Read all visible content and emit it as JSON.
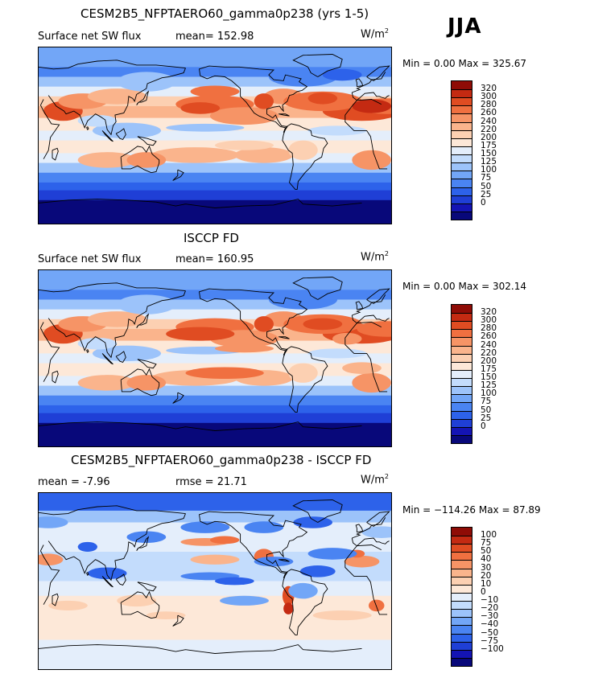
{
  "season_label": "JJA",
  "units": "W/m",
  "units_exp": "2",
  "colors": {
    "abs": [
      "#08087a",
      "#1414b4",
      "#1f3fd6",
      "#2d62ea",
      "#4a84f2",
      "#72a6f7",
      "#9cc3fa",
      "#c3dcfc",
      "#e4eefb",
      "#fde8d8",
      "#fcd0b2",
      "#fab48c",
      "#f69466",
      "#f07040",
      "#e04c22",
      "#c42a12",
      "#8f0c06"
    ],
    "diff": [
      "#08087a",
      "#1414b4",
      "#1f3fd6",
      "#2d62ea",
      "#4a84f2",
      "#72a6f7",
      "#9cc3fa",
      "#c3dcfc",
      "#e4eefb",
      "#fde8d8",
      "#fcd0b2",
      "#fab48c",
      "#f69466",
      "#f07040",
      "#e04c22",
      "#c42a12",
      "#8f0c06"
    ]
  },
  "panels": [
    {
      "title": "CESM2B5_NFPTAERO60_gamma0p238 (yrs 1-5)",
      "left_label": "Surface net SW flux",
      "stat1": "mean= 152.98",
      "stat2": "",
      "min_text": "Min =   0.00 Max = 325.67",
      "ticks": [
        "320",
        "300",
        "280",
        "260",
        "240",
        "220",
        "200",
        "175",
        "150",
        "125",
        "100",
        "75",
        "50",
        "25",
        "0"
      ],
      "kind": "model"
    },
    {
      "title": "ISCCP FD",
      "left_label": "Surface net SW flux",
      "stat1": "mean= 160.95",
      "stat2": "",
      "min_text": "Min =   0.00 Max = 302.14",
      "ticks": [
        "320",
        "300",
        "280",
        "260",
        "240",
        "220",
        "200",
        "175",
        "150",
        "125",
        "100",
        "75",
        "50",
        "25",
        "0"
      ],
      "kind": "obs"
    },
    {
      "title": "CESM2B5_NFPTAERO60_gamma0p238 - ISCCP FD",
      "left_label": "mean =   -7.96",
      "stat1": "rmse =   21.71",
      "stat2": "",
      "min_text": "Min = −114.26 Max =  87.89",
      "ticks": [
        "100",
        "75",
        "50",
        "40",
        "30",
        "20",
        "10",
        "0",
        "−10",
        "−20",
        "−30",
        "−40",
        "−50",
        "−75",
        "−100"
      ],
      "kind": "diff"
    }
  ]
}
